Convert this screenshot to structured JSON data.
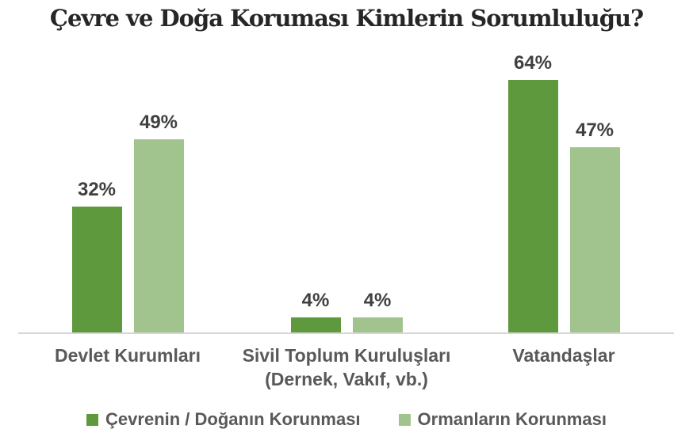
{
  "title": "Çevre ve Doğa Koruması Kimlerin Sorumluluğu?",
  "colors": {
    "series1": "#5E9A3D",
    "series2": "#A1C48E",
    "title_text": "#262626",
    "data_label_text": "#404040",
    "category_text": "#595959",
    "axis_line": "#D6D6D6",
    "background": "#FFFFFF"
  },
  "chart_data": {
    "type": "bar",
    "title": "Çevre ve Doğa Koruması Kimlerin Sorumluluğu?",
    "categories": [
      "Devlet Kurumları",
      "Sivil Toplum Kuruluşları (Dernek, Vakıf, vb.)",
      "Vatandaşlar"
    ],
    "category_lines": [
      {
        "line1": "Devlet Kurumları",
        "line2": ""
      },
      {
        "line1": "Sivil Toplum Kuruluşları",
        "line2": "(Dernek, Vakıf, vb.)"
      },
      {
        "line1": "Vatandaşlar",
        "line2": ""
      }
    ],
    "series": [
      {
        "name": "Çevrenin / Doğanın Korunması",
        "color": "#5E9A3D",
        "values": [
          32,
          4,
          64
        ],
        "labels": [
          "32%",
          "4%",
          "64%"
        ]
      },
      {
        "name": "Ormanların Korunması",
        "color": "#A1C48E",
        "values": [
          49,
          4,
          47
        ],
        "labels": [
          "49%",
          "4%",
          "47%"
        ]
      }
    ],
    "unit": "%",
    "ylim": [
      0,
      70
    ],
    "y_axis_visible": false,
    "gridlines": false,
    "legend_position": "bottom"
  }
}
